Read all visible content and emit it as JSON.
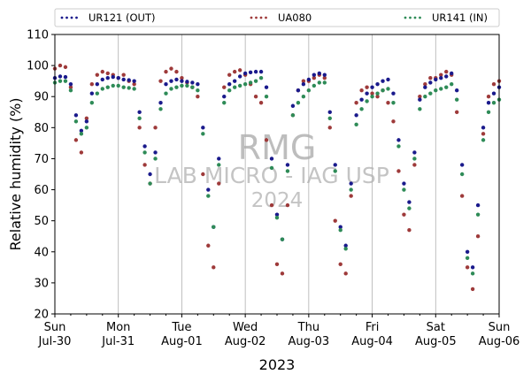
{
  "chart_data": {
    "type": "scatter",
    "title": "",
    "xlabel": "2023",
    "ylabel": "Relative humidity (%)",
    "ylim": [
      20,
      110
    ],
    "yticks": [
      20,
      30,
      40,
      50,
      60,
      70,
      80,
      90,
      100,
      110
    ],
    "xlim_hours": [
      0,
      168
    ],
    "xticks": [
      {
        "hour": 0,
        "day": "Sun",
        "date": "Jul-30"
      },
      {
        "hour": 24,
        "day": "Mon",
        "date": "Jul-31"
      },
      {
        "hour": 48,
        "day": "Tue",
        "date": "Aug-01"
      },
      {
        "hour": 72,
        "day": "Wed",
        "date": "Aug-02"
      },
      {
        "hour": 96,
        "day": "Thu",
        "date": "Aug-03"
      },
      {
        "hour": 120,
        "day": "Fri",
        "date": "Aug-04"
      },
      {
        "hour": 144,
        "day": "Sat",
        "date": "Aug-05"
      },
      {
        "hour": 168,
        "day": "Sun",
        "date": "Aug-06"
      }
    ],
    "grid": "vertical",
    "legend": "top, above plot, 3 columns",
    "watermark": {
      "line1": "RMG",
      "line2": "LAB MICRO - IAG USP",
      "line3": "2024"
    },
    "series": [
      {
        "name": "UR121 (OUT)",
        "color": "#1a1a8c",
        "points": [
          [
            0,
            96
          ],
          [
            2,
            96.5
          ],
          [
            4,
            96.3
          ],
          [
            6,
            94
          ],
          [
            8,
            84
          ],
          [
            10,
            79
          ],
          [
            12,
            82
          ],
          [
            14,
            91
          ],
          [
            16,
            94
          ],
          [
            18,
            95.5
          ],
          [
            20,
            96
          ],
          [
            22,
            96.3
          ],
          [
            24,
            96
          ],
          [
            26,
            95.5
          ],
          [
            28,
            95.3
          ],
          [
            30,
            95
          ],
          [
            32,
            85
          ],
          [
            34,
            74
          ],
          [
            36,
            65
          ],
          [
            38,
            72
          ],
          [
            40,
            88
          ],
          [
            42,
            94
          ],
          [
            44,
            95
          ],
          [
            46,
            95.5
          ],
          [
            48,
            95
          ],
          [
            50,
            94.8
          ],
          [
            52,
            94.5
          ],
          [
            54,
            94
          ],
          [
            56,
            80
          ],
          [
            58,
            60
          ],
          [
            60,
            48
          ],
          [
            62,
            70
          ],
          [
            64,
            90
          ],
          [
            66,
            94
          ],
          [
            68,
            95
          ],
          [
            70,
            96.5
          ],
          [
            72,
            97.5
          ],
          [
            74,
            97.8
          ],
          [
            76,
            98
          ],
          [
            78,
            98
          ],
          [
            80,
            93
          ],
          [
            82,
            70
          ],
          [
            84,
            52
          ],
          [
            86,
            44
          ],
          [
            88,
            68
          ],
          [
            90,
            87
          ],
          [
            92,
            92
          ],
          [
            94,
            94
          ],
          [
            96,
            95.5
          ],
          [
            98,
            97
          ],
          [
            100,
            97.5
          ],
          [
            102,
            97
          ],
          [
            104,
            85
          ],
          [
            106,
            68
          ],
          [
            108,
            48
          ],
          [
            110,
            42
          ],
          [
            112,
            62
          ],
          [
            114,
            84
          ],
          [
            116,
            89
          ],
          [
            118,
            91
          ],
          [
            120,
            93
          ],
          [
            122,
            94
          ],
          [
            124,
            95
          ],
          [
            126,
            95.5
          ],
          [
            128,
            91
          ],
          [
            130,
            76
          ],
          [
            132,
            62
          ],
          [
            134,
            56
          ],
          [
            136,
            72
          ],
          [
            138,
            89
          ],
          [
            140,
            93
          ],
          [
            142,
            94.5
          ],
          [
            144,
            95.5
          ],
          [
            146,
            96
          ],
          [
            148,
            96.5
          ],
          [
            150,
            97.5
          ],
          [
            152,
            92
          ],
          [
            154,
            68
          ],
          [
            156,
            40
          ],
          [
            158,
            35
          ],
          [
            160,
            55
          ],
          [
            162,
            80
          ],
          [
            164,
            88
          ],
          [
            166,
            91
          ],
          [
            168,
            93
          ]
        ]
      },
      {
        "name": "UA080",
        "color": "#9e3a3a",
        "points": [
          [
            0,
            99
          ],
          [
            2,
            100
          ],
          [
            4,
            99.5
          ],
          [
            6,
            93
          ],
          [
            8,
            76
          ],
          [
            10,
            72
          ],
          [
            12,
            83
          ],
          [
            14,
            94
          ],
          [
            16,
            97
          ],
          [
            18,
            98
          ],
          [
            20,
            97.5
          ],
          [
            22,
            97
          ],
          [
            24,
            96
          ],
          [
            26,
            97
          ],
          [
            28,
            95
          ],
          [
            30,
            94
          ],
          [
            32,
            80
          ],
          [
            34,
            68
          ],
          [
            36,
            62
          ],
          [
            38,
            80
          ],
          [
            40,
            95
          ],
          [
            42,
            98
          ],
          [
            44,
            99
          ],
          [
            46,
            98
          ],
          [
            48,
            96
          ],
          [
            50,
            94.5
          ],
          [
            52,
            93
          ],
          [
            54,
            90
          ],
          [
            56,
            65
          ],
          [
            58,
            42
          ],
          [
            60,
            35
          ],
          [
            62,
            62
          ],
          [
            64,
            93
          ],
          [
            66,
            97
          ],
          [
            68,
            98
          ],
          [
            70,
            98.5
          ],
          [
            72,
            97
          ],
          [
            74,
            94
          ],
          [
            76,
            90
          ],
          [
            78,
            88
          ],
          [
            80,
            76
          ],
          [
            82,
            55
          ],
          [
            84,
            36
          ],
          [
            86,
            33
          ],
          [
            88,
            55
          ],
          [
            90,
            84
          ],
          [
            92,
            92
          ],
          [
            94,
            95
          ],
          [
            96,
            95
          ],
          [
            98,
            96
          ],
          [
            100,
            97
          ],
          [
            102,
            96
          ],
          [
            104,
            80
          ],
          [
            106,
            50
          ],
          [
            108,
            36
          ],
          [
            110,
            33
          ],
          [
            112,
            58
          ],
          [
            114,
            88
          ],
          [
            116,
            92
          ],
          [
            118,
            93
          ],
          [
            120,
            91
          ],
          [
            122,
            90
          ],
          [
            124,
            92
          ],
          [
            126,
            88
          ],
          [
            128,
            82
          ],
          [
            130,
            66
          ],
          [
            132,
            52
          ],
          [
            134,
            47
          ],
          [
            136,
            68
          ],
          [
            138,
            90
          ],
          [
            140,
            94
          ],
          [
            142,
            96
          ],
          [
            144,
            96
          ],
          [
            146,
            97
          ],
          [
            148,
            98
          ],
          [
            150,
            97
          ],
          [
            152,
            85
          ],
          [
            154,
            58
          ],
          [
            156,
            35
          ],
          [
            158,
            28
          ],
          [
            160,
            45
          ],
          [
            162,
            78
          ],
          [
            164,
            90
          ],
          [
            166,
            94
          ],
          [
            168,
            95
          ]
        ]
      },
      {
        "name": "UR141 (IN)",
        "color": "#2e8b57",
        "points": [
          [
            0,
            94.5
          ],
          [
            2,
            95
          ],
          [
            4,
            95
          ],
          [
            6,
            92
          ],
          [
            8,
            82
          ],
          [
            10,
            78
          ],
          [
            12,
            80
          ],
          [
            14,
            88
          ],
          [
            16,
            91
          ],
          [
            18,
            92.5
          ],
          [
            20,
            93
          ],
          [
            22,
            93.5
          ],
          [
            24,
            93.5
          ],
          [
            26,
            93
          ],
          [
            28,
            92.8
          ],
          [
            30,
            92.5
          ],
          [
            32,
            83
          ],
          [
            34,
            72
          ],
          [
            36,
            62
          ],
          [
            38,
            70
          ],
          [
            40,
            86
          ],
          [
            42,
            91
          ],
          [
            44,
            92.5
          ],
          [
            46,
            93
          ],
          [
            48,
            93.5
          ],
          [
            50,
            93.5
          ],
          [
            52,
            93
          ],
          [
            54,
            92
          ],
          [
            56,
            78
          ],
          [
            58,
            58
          ],
          [
            60,
            48
          ],
          [
            62,
            68
          ],
          [
            64,
            88
          ],
          [
            66,
            92
          ],
          [
            68,
            93
          ],
          [
            70,
            93.5
          ],
          [
            72,
            94
          ],
          [
            74,
            94.5
          ],
          [
            76,
            95
          ],
          [
            78,
            96
          ],
          [
            80,
            90
          ],
          [
            82,
            67
          ],
          [
            84,
            51
          ],
          [
            86,
            44
          ],
          [
            88,
            66
          ],
          [
            90,
            84
          ],
          [
            92,
            88
          ],
          [
            94,
            90
          ],
          [
            96,
            92
          ],
          [
            98,
            93.5
          ],
          [
            100,
            94.5
          ],
          [
            102,
            94.5
          ],
          [
            104,
            83
          ],
          [
            106,
            66
          ],
          [
            108,
            47
          ],
          [
            110,
            41
          ],
          [
            112,
            60
          ],
          [
            114,
            81
          ],
          [
            116,
            86
          ],
          [
            118,
            88.5
          ],
          [
            120,
            90
          ],
          [
            122,
            91
          ],
          [
            124,
            92
          ],
          [
            126,
            92.5
          ],
          [
            128,
            88
          ],
          [
            130,
            74
          ],
          [
            132,
            60
          ],
          [
            134,
            54
          ],
          [
            136,
            70
          ],
          [
            138,
            86
          ],
          [
            140,
            90
          ],
          [
            142,
            91
          ],
          [
            144,
            92
          ],
          [
            146,
            92.5
          ],
          [
            148,
            93
          ],
          [
            150,
            94
          ],
          [
            152,
            89
          ],
          [
            154,
            65
          ],
          [
            156,
            38
          ],
          [
            158,
            33
          ],
          [
            160,
            52
          ],
          [
            162,
            76
          ],
          [
            164,
            85
          ],
          [
            166,
            88
          ],
          [
            168,
            89
          ]
        ]
      }
    ]
  }
}
